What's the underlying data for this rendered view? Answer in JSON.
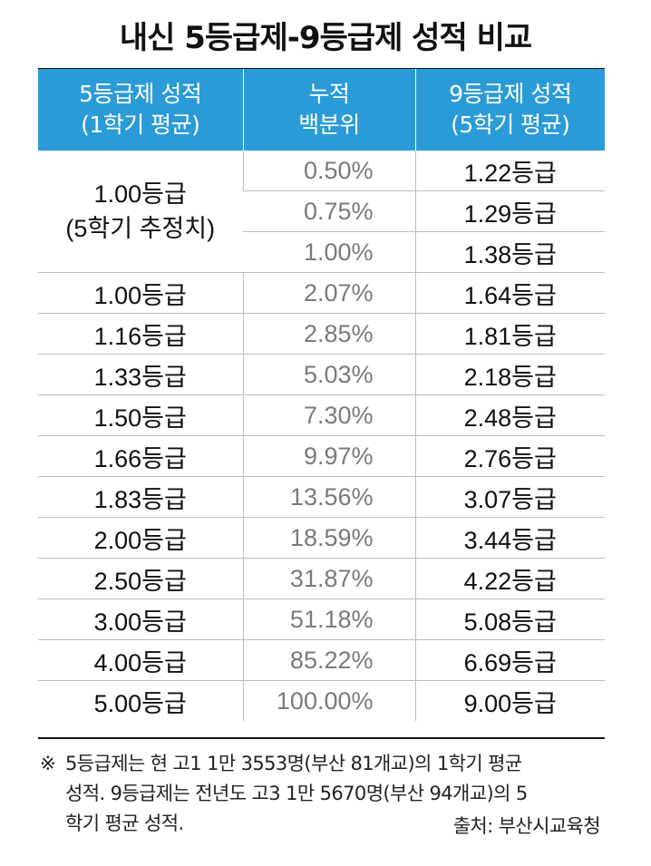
{
  "title": "내신 5등급제-9등급제 성적 비교",
  "headers": {
    "col1_line1": "5등급제 성적",
    "col1_line2": "(1학기 평균)",
    "col2_line1": "누적",
    "col2_line2": "백분위",
    "col3_line1": "9등급제 성적",
    "col3_line2": "(5학기 평균)"
  },
  "merged": {
    "grade5_line1": "1.00등급",
    "grade5_line2": "(5학기 추정치)",
    "rows": [
      {
        "pct": "0.50%",
        "grade9": "1.22등급"
      },
      {
        "pct": "0.75%",
        "grade9": "1.29등급"
      },
      {
        "pct": "1.00%",
        "grade9": "1.38등급"
      }
    ]
  },
  "rows": [
    {
      "grade5": "1.00등급",
      "pct": "2.07%",
      "grade9": "1.64등급"
    },
    {
      "grade5": "1.16등급",
      "pct": "2.85%",
      "grade9": "1.81등급"
    },
    {
      "grade5": "1.33등급",
      "pct": "5.03%",
      "grade9": "2.18등급"
    },
    {
      "grade5": "1.50등급",
      "pct": "7.30%",
      "grade9": "2.48등급"
    },
    {
      "grade5": "1.66등급",
      "pct": "9.97%",
      "grade9": "2.76등급"
    },
    {
      "grade5": "1.83등급",
      "pct": "13.56%",
      "grade9": "3.07등급"
    },
    {
      "grade5": "2.00등급",
      "pct": "18.59%",
      "grade9": "3.44등급"
    },
    {
      "grade5": "2.50등급",
      "pct": "31.87%",
      "grade9": "4.22등급"
    },
    {
      "grade5": "3.00등급",
      "pct": "51.18%",
      "grade9": "5.08등급"
    },
    {
      "grade5": "4.00등급",
      "pct": "85.22%",
      "grade9": "6.69등급"
    },
    {
      "grade5": "5.00등급",
      "pct": "100.00%",
      "grade9": "9.00등급"
    }
  ],
  "note": {
    "mark": "※",
    "line1": "5등급제는 현 고1 1만 3553명(부산 81개교)의 1학기 평균",
    "line2": "성적. 9등급제는 전년도 고3 1만 5670명(부산 94개교)의 5",
    "line3": "학기 평균 성적.",
    "source": "출처: 부산시교육청"
  },
  "colors": {
    "header_bg": "#2b9bd8",
    "header_text": "#ffffff",
    "pct_text": "#7a7a7a",
    "grid": "#bdbdbd"
  }
}
